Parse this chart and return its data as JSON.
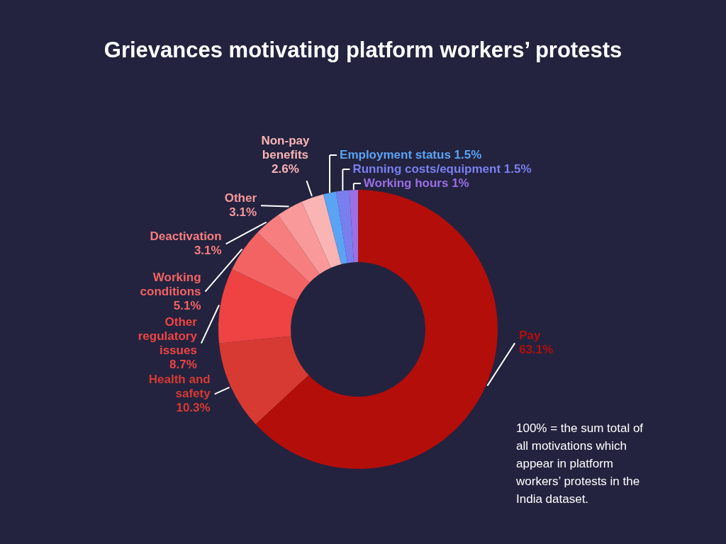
{
  "chart_data": {
    "type": "donut",
    "title": "Grievances motivating platform workers’ protests",
    "categories": [
      "Pay",
      "Health and safety",
      "Other regulatory issues",
      "Working conditions",
      "Deactivation",
      "Other",
      "Non-pay benefits",
      "Employment status",
      "Running costs/equipment",
      "Working hours"
    ],
    "values": [
      63.1,
      10.3,
      8.7,
      5.1,
      3.1,
      3.1,
      2.6,
      1.5,
      1.5,
      1
    ],
    "value_labels": [
      "63.1%",
      "10.3%",
      "8.7%",
      "5.1%",
      "3.1%",
      "3.1%",
      "2.6%",
      "1.5%",
      "1.5%",
      "1%"
    ],
    "colors": [
      "#b30e0a",
      "#d73a32",
      "#ef4343",
      "#f46363",
      "#f77e7e",
      "#f99999",
      "#fbb4b4",
      "#5aa3f5",
      "#7a7ff0",
      "#9b6fe6"
    ],
    "annotations": [
      "100% = the sum total of all motivations which appear in platform workers’ protests in the India dataset."
    ]
  }
}
